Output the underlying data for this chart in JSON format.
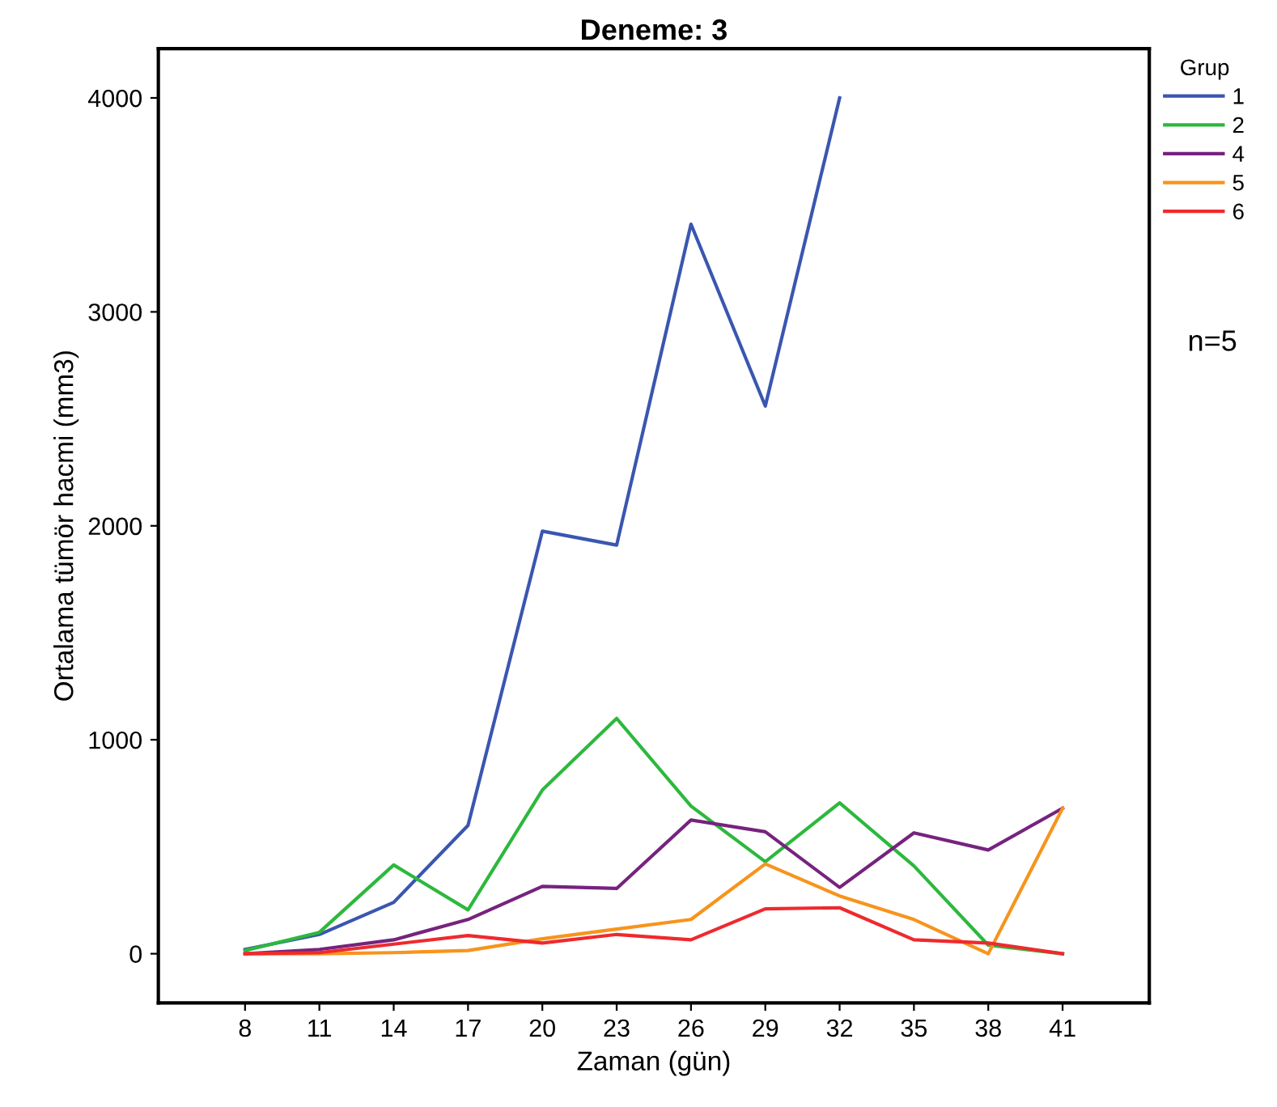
{
  "chart_data": {
    "type": "line",
    "title": "Deneme: 3",
    "xlabel": "Zaman (gün)",
    "ylabel": "Ortalama tümör hacmi (mm3)",
    "legend_title": "Grup",
    "legend": "right",
    "x": [
      8,
      11,
      14,
      17,
      20,
      23,
      26,
      29,
      32,
      35,
      38,
      41
    ],
    "series": [
      {
        "name": "1",
        "color": "#3a56b0",
        "values": [
          20,
          90,
          240,
          600,
          1975,
          1910,
          3410,
          2560,
          4000,
          null,
          null,
          null
        ]
      },
      {
        "name": "2",
        "color": "#2db83d",
        "values": [
          15,
          100,
          415,
          205,
          765,
          1100,
          690,
          430,
          705,
          410,
          40,
          0
        ]
      },
      {
        "name": "4",
        "color": "#76237e",
        "values": [
          0,
          20,
          65,
          160,
          315,
          305,
          625,
          570,
          310,
          565,
          485,
          680
        ]
      },
      {
        "name": "5",
        "color": "#f7941d",
        "values": [
          0,
          0,
          5,
          15,
          70,
          115,
          160,
          420,
          270,
          160,
          0,
          680
        ]
      },
      {
        "name": "6",
        "color": "#ee2a2e",
        "values": [
          0,
          5,
          45,
          85,
          50,
          90,
          65,
          210,
          215,
          65,
          50,
          0
        ]
      }
    ],
    "xlim": [
      4.5,
      44.5
    ],
    "xticks": [
      8,
      11,
      14,
      17,
      20,
      23,
      26,
      29,
      32,
      35,
      38,
      41
    ],
    "ylim": [
      -230,
      4230
    ],
    "yticks": [
      0,
      1000,
      2000,
      3000,
      4000
    ],
    "grid": false,
    "marker": "none",
    "line_style": "solid",
    "annotations": [
      "n=5"
    ]
  }
}
